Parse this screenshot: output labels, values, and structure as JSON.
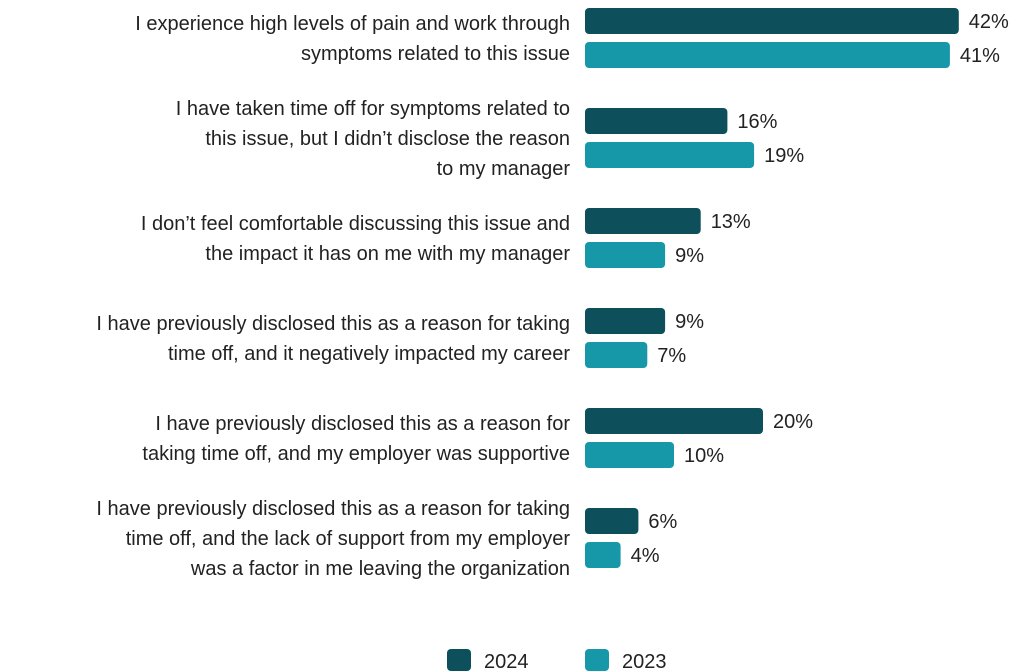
{
  "chart_data": {
    "type": "bar",
    "orientation": "horizontal",
    "categories": [
      [
        "I experience high levels of pain and work through",
        "symptoms related to this issue"
      ],
      [
        "I have taken time off for symptoms related to",
        "this issue, but I didn’t disclose the reason",
        "to my manager"
      ],
      [
        "I don’t feel comfortable discussing this issue and",
        "the impact it has on me with my manager"
      ],
      [
        "I have previously disclosed this as a reason for taking",
        "time off, and it negatively impacted my career"
      ],
      [
        "I have previously disclosed this as a reason for",
        "taking time off, and my employer was supportive"
      ],
      [
        "I have previously disclosed this as a reason for taking",
        "time off, and the lack of support from my employer",
        "was a factor in me leaving the organization"
      ]
    ],
    "series": [
      {
        "name": "2024",
        "color": "#0d4f5b",
        "values": [
          42,
          16,
          13,
          9,
          20,
          6
        ]
      },
      {
        "name": "2023",
        "color": "#1798a8",
        "values": [
          41,
          19,
          9,
          7,
          10,
          4
        ]
      }
    ],
    "value_suffix": "%",
    "xlim": [
      0,
      42
    ],
    "legend_position": "bottom-center",
    "grid": false
  }
}
